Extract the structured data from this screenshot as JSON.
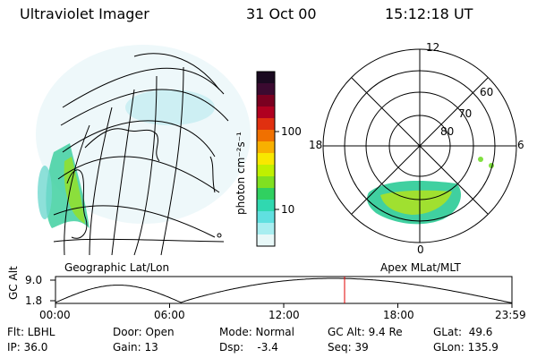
{
  "header": {
    "instrument": "Ultraviolet Imager",
    "date": "31 Oct 00",
    "time": "15:12:18 UT"
  },
  "geo_panel": {
    "label": "Geographic Lat/Lon"
  },
  "polar_panel": {
    "label": "Apex MLat/MLT",
    "mlt_labels": [
      "12",
      "18",
      "6",
      "0"
    ],
    "lat_labels": [
      "60",
      "70",
      "80"
    ]
  },
  "colorbar": {
    "unit_label": "photon cm⁻²s⁻¹",
    "ticks": [
      "100",
      "10"
    ],
    "colors": [
      "#1a0a20",
      "#3b0a30",
      "#7a0020",
      "#b00020",
      "#e03010",
      "#f07000",
      "#f8b000",
      "#f8e800",
      "#c0f000",
      "#80e020",
      "#30d060",
      "#30d8b0",
      "#60e0e0",
      "#a8eef0",
      "#e8f8f8"
    ]
  },
  "altitude_plot": {
    "axis_label": "GC Alt",
    "y_ticks": [
      "9.0",
      "1.8"
    ],
    "x_ticks": [
      "00:00",
      "06:00",
      "12:00",
      "18:00",
      "23:59"
    ],
    "current_hour": 15.2,
    "orbit_min_hours": [
      0.0,
      6.6,
      23.9
    ],
    "orbit_max_hours": [
      15.3
    ]
  },
  "info": {
    "flt": "Flt: LBHL",
    "ip": "IP: 36.0",
    "door": "Door: Open",
    "gain": "Gain: 13",
    "mode": "Mode: Normal",
    "dsp": "Dsp:    -3.4",
    "gc_alt": "GC Alt: 9.4 Re",
    "seq": "Seq: 39",
    "glat": "GLat:  49.6",
    "glon": "GLon: 135.9"
  }
}
